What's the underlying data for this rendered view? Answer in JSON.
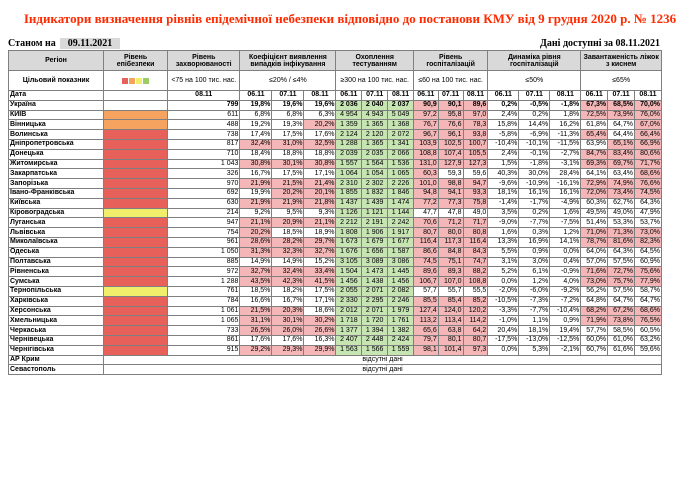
{
  "title": "Індикатори визначення рівнів епідемічної небезпеки відповідно до постанови КМУ від 9 грудня 2020 р. № 1236",
  "status_label": "Станом на",
  "status_date": "09.11.2021",
  "available_label": "Дані доступні за 08.11.2021",
  "headers": {
    "region": "Регіон",
    "level": "Рівень епібезпеки",
    "incidence": "Рівень захворюваності",
    "detection": "Коефіцієнт виявлення випадків інфікування",
    "testing": "Охоплення тестуванням",
    "hosp_level": "Рівень госпіталізацій",
    "hosp_dynamics": "Динаміка рівня госпіталізацій",
    "beds": "Завантаженість ліжок з киснем",
    "target_label": "Цільовий показник",
    "date_label": "Дата",
    "incidence_target": "<75 на 100 тис. нас.",
    "detection_target": "≤20% / ≤4%",
    "testing_target": "≥300 на 100 тис. нас.",
    "hosp_target": "≤60 на 100 тис. нас.",
    "dyn_target": "≤50%",
    "beds_target": "≤65%"
  },
  "dates": [
    "06.11",
    "07.11",
    "08.11"
  ],
  "incidence_date": "08.11",
  "level_colors": {
    "red": "#e8605a",
    "orange": "#f5a35f",
    "yellow": "#f0ee6a",
    "green": "#9ccc65"
  },
  "ukraine": {
    "name": "Україна",
    "inc": "799",
    "det": [
      "19,8%",
      "19,6%",
      "19,6%"
    ],
    "test": [
      "2 036",
      "2 040",
      "2 037"
    ],
    "hosp": [
      "90,9",
      "90,1",
      "89,6"
    ],
    "dyn": [
      "0,2%",
      "-0,5%",
      "-1,8%"
    ],
    "beds": [
      "67,3%",
      "68,5%",
      "70,0%"
    ]
  },
  "rows": [
    {
      "name": "КИЇВ",
      "lvl": "orange",
      "inc": "611",
      "det": [
        "6,8%",
        "6,8%",
        "6,3%"
      ],
      "test": [
        "4 954",
        "4 943",
        "5 049"
      ],
      "hosp": [
        "97,2",
        "95,8",
        "97,0"
      ],
      "dyn": [
        "2,4%",
        "0,2%",
        "1,8%"
      ],
      "beds": [
        "72,5%",
        "73,9%",
        "76,0%"
      ]
    },
    {
      "name": "Вінницька",
      "lvl": "orange",
      "inc": "488",
      "det": [
        "19,2%",
        "19,3%",
        "20,2%"
      ],
      "test": [
        "1 359",
        "1 365",
        "1 368"
      ],
      "hosp": [
        "76,7",
        "76,6",
        "78,3"
      ],
      "dyn": [
        "15,8%",
        "14,4%",
        "16,2%"
      ],
      "beds": [
        "61,8%",
        "64,7%",
        "67,0%"
      ]
    },
    {
      "name": "Волинська",
      "lvl": "red",
      "inc": "738",
      "det": [
        "17,4%",
        "17,5%",
        "17,6%"
      ],
      "test": [
        "2 124",
        "2 120",
        "2 072"
      ],
      "hosp": [
        "96,7",
        "96,1",
        "93,8"
      ],
      "dyn": [
        "-5,8%",
        "-6,9%",
        "-11,3%"
      ],
      "beds": [
        "65,4%",
        "64,4%",
        "66,4%"
      ]
    },
    {
      "name": "Дніпропетровська",
      "lvl": "red",
      "inc": "817",
      "det": [
        "32,4%",
        "31,0%",
        "32,5%"
      ],
      "test": [
        "1 288",
        "1 365",
        "1 341"
      ],
      "hosp": [
        "103,9",
        "102,5",
        "100,7"
      ],
      "dyn": [
        "-10,4%",
        "-10,1%",
        "-11,5%"
      ],
      "beds": [
        "63,9%",
        "65,1%",
        "66,9%"
      ]
    },
    {
      "name": "Донецька",
      "lvl": "red",
      "inc": "710",
      "det": [
        "18,4%",
        "18,8%",
        "18,8%"
      ],
      "test": [
        "2 039",
        "2 035",
        "2 066"
      ],
      "hosp": [
        "108,8",
        "107,4",
        "105,5"
      ],
      "dyn": [
        "2,4%",
        "-0,1%",
        "-2,7%"
      ],
      "beds": [
        "84,7%",
        "83,4%",
        "80,6%"
      ]
    },
    {
      "name": "Житомирська",
      "lvl": "red",
      "inc": "1 043",
      "det": [
        "30,8%",
        "30,1%",
        "30,8%"
      ],
      "test": [
        "1 557",
        "1 564",
        "1 536"
      ],
      "hosp": [
        "131,0",
        "127,9",
        "127,3"
      ],
      "dyn": [
        "1,5%",
        "-1,8%",
        "-3,1%"
      ],
      "beds": [
        "69,3%",
        "69,7%",
        "71,7%"
      ]
    },
    {
      "name": "Закарпатська",
      "lvl": "red",
      "inc": "326",
      "det": [
        "16,7%",
        "17,5%",
        "17,1%"
      ],
      "test": [
        "1 064",
        "1 054",
        "1 065"
      ],
      "hosp": [
        "60,3",
        "59,3",
        "59,6"
      ],
      "dyn": [
        "40,3%",
        "30,0%",
        "28,4%"
      ],
      "beds": [
        "64,1%",
        "63,4%",
        "68,6%"
      ]
    },
    {
      "name": "Запорізька",
      "lvl": "red",
      "inc": "970",
      "det": [
        "21,9%",
        "21,5%",
        "21,4%"
      ],
      "test": [
        "2 310",
        "2 302",
        "2 226"
      ],
      "hosp": [
        "101,0",
        "98,8",
        "94,7"
      ],
      "dyn": [
        "-9,6%",
        "-10,9%",
        "-16,1%"
      ],
      "beds": [
        "72,9%",
        "74,9%",
        "76,6%"
      ]
    },
    {
      "name": "Івано-Франківська",
      "lvl": "red",
      "inc": "692",
      "det": [
        "19,9%",
        "20,2%",
        "20,1%"
      ],
      "test": [
        "1 855",
        "1 832",
        "1 846"
      ],
      "hosp": [
        "94,8",
        "94,1",
        "93,3"
      ],
      "dyn": [
        "18,1%",
        "16,1%",
        "16,1%"
      ],
      "beds": [
        "72,0%",
        "73,4%",
        "74,5%"
      ]
    },
    {
      "name": "Київська",
      "lvl": "red",
      "inc": "630",
      "det": [
        "21,9%",
        "21,9%",
        "21,8%"
      ],
      "test": [
        "1 437",
        "1 439",
        "1 474"
      ],
      "hosp": [
        "77,2",
        "77,3",
        "75,8"
      ],
      "dyn": [
        "-1,4%",
        "-1,7%",
        "-4,9%"
      ],
      "beds": [
        "60,3%",
        "62,7%",
        "64,3%"
      ]
    },
    {
      "name": "Кіровоградська",
      "lvl": "yellow",
      "inc": "214",
      "det": [
        "9,2%",
        "9,5%",
        "9,3%"
      ],
      "test": [
        "1 126",
        "1 121",
        "1 144"
      ],
      "hosp": [
        "47,7",
        "47,8",
        "49,0"
      ],
      "dyn": [
        "3,5%",
        "0,2%",
        "1,6%"
      ],
      "beds": [
        "49,5%",
        "49,0%",
        "47,9%"
      ]
    },
    {
      "name": "Луганська",
      "lvl": "red",
      "inc": "947",
      "det": [
        "21,1%",
        "20,9%",
        "21,1%"
      ],
      "test": [
        "2 212",
        "2 191",
        "2 242"
      ],
      "hosp": [
        "70,6",
        "71,2",
        "71,7"
      ],
      "dyn": [
        "-9,0%",
        "-7,7%",
        "-7,5%"
      ],
      "beds": [
        "51,4%",
        "53,3%",
        "53,7%"
      ]
    },
    {
      "name": "Львівська",
      "lvl": "red",
      "inc": "754",
      "det": [
        "20,2%",
        "18,5%",
        "18,9%"
      ],
      "test": [
        "1 808",
        "1 906",
        "1 917"
      ],
      "hosp": [
        "80,7",
        "80,0",
        "80,8"
      ],
      "dyn": [
        "1,6%",
        "0,3%",
        "1,2%"
      ],
      "beds": [
        "71,0%",
        "71,3%",
        "73,0%"
      ]
    },
    {
      "name": "Миколаївська",
      "lvl": "red",
      "inc": "961",
      "det": [
        "28,6%",
        "28,2%",
        "29,7%"
      ],
      "test": [
        "1 673",
        "1 679",
        "1 677"
      ],
      "hosp": [
        "116,4",
        "117,3",
        "116,4"
      ],
      "dyn": [
        "13,3%",
        "16,9%",
        "14,1%"
      ],
      "beds": [
        "78,7%",
        "81,6%",
        "82,3%"
      ]
    },
    {
      "name": "Одеська",
      "lvl": "red",
      "inc": "1 050",
      "det": [
        "31,3%",
        "32,3%",
        "32,7%"
      ],
      "test": [
        "1 676",
        "1 656",
        "1 587"
      ],
      "hosp": [
        "86,6",
        "84,8",
        "84,3"
      ],
      "dyn": [
        "5,5%",
        "0,9%",
        "0,0%"
      ],
      "beds": [
        "64,0%",
        "64,3%",
        "64,5%"
      ]
    },
    {
      "name": "Полтавська",
      "lvl": "red",
      "inc": "885",
      "det": [
        "14,9%",
        "14,9%",
        "15,2%"
      ],
      "test": [
        "3 105",
        "3 089",
        "3 086"
      ],
      "hosp": [
        "74,5",
        "75,1",
        "74,7"
      ],
      "dyn": [
        "3,1%",
        "3,0%",
        "0,4%"
      ],
      "beds": [
        "57,0%",
        "57,5%",
        "60,9%"
      ]
    },
    {
      "name": "Рівненська",
      "lvl": "red",
      "inc": "972",
      "det": [
        "32,7%",
        "32,4%",
        "33,4%"
      ],
      "test": [
        "1 504",
        "1 473",
        "1 445"
      ],
      "hosp": [
        "89,6",
        "89,3",
        "88,2"
      ],
      "dyn": [
        "5,2%",
        "6,1%",
        "-0,9%"
      ],
      "beds": [
        "71,6%",
        "72,7%",
        "75,6%"
      ]
    },
    {
      "name": "Сумська",
      "lvl": "red",
      "inc": "1 288",
      "det": [
        "43,5%",
        "42,3%",
        "41,5%"
      ],
      "test": [
        "1 456",
        "1 438",
        "1 456"
      ],
      "hosp": [
        "106,7",
        "107,0",
        "108,8"
      ],
      "dyn": [
        "0,0%",
        "1,2%",
        "4,0%"
      ],
      "beds": [
        "73,0%",
        "75,7%",
        "77,9%"
      ]
    },
    {
      "name": "Тернопільська",
      "lvl": "yellow",
      "inc": "761",
      "det": [
        "18,5%",
        "18,2%",
        "17,5%"
      ],
      "test": [
        "2 055",
        "2 071",
        "2 082"
      ],
      "hosp": [
        "57,7",
        "55,7",
        "55,5"
      ],
      "dyn": [
        "-2,0%",
        "-6,0%",
        "-9,2%"
      ],
      "beds": [
        "56,2%",
        "57,5%",
        "58,7%"
      ]
    },
    {
      "name": "Харківська",
      "lvl": "red",
      "inc": "784",
      "det": [
        "16,6%",
        "16,7%",
        "17,1%"
      ],
      "test": [
        "2 330",
        "2 295",
        "2 246"
      ],
      "hosp": [
        "85,5",
        "85,4",
        "85,2"
      ],
      "dyn": [
        "-10,5%",
        "-7,3%",
        "-7,2%"
      ],
      "beds": [
        "64,8%",
        "64,7%",
        "64,7%"
      ]
    },
    {
      "name": "Херсонська",
      "lvl": "red",
      "inc": "1 061",
      "det": [
        "21,5%",
        "20,3%",
        "18,6%"
      ],
      "test": [
        "2 012",
        "2 071",
        "1 979"
      ],
      "hosp": [
        "127,4",
        "124,0",
        "120,2"
      ],
      "dyn": [
        "-3,3%",
        "-7,7%",
        "-10,4%"
      ],
      "beds": [
        "68,2%",
        "67,2%",
        "68,6%"
      ]
    },
    {
      "name": "Хмельницька",
      "lvl": "red",
      "inc": "1 065",
      "det": [
        "31,1%",
        "30,1%",
        "30,2%"
      ],
      "test": [
        "1 718",
        "1 720",
        "1 761"
      ],
      "hosp": [
        "113,2",
        "113,4",
        "114,2"
      ],
      "dyn": [
        "-1,0%",
        "1,1%",
        "0,9%"
      ],
      "beds": [
        "71,9%",
        "73,8%",
        "76,5%"
      ]
    },
    {
      "name": "Черкаська",
      "lvl": "red",
      "inc": "733",
      "det": [
        "26,5%",
        "26,0%",
        "26,6%"
      ],
      "test": [
        "1 377",
        "1 394",
        "1 382"
      ],
      "hosp": [
        "65,6",
        "63,8",
        "64,2"
      ],
      "dyn": [
        "20,4%",
        "18,1%",
        "19,4%"
      ],
      "beds": [
        "57,7%",
        "58,5%",
        "60,5%"
      ]
    },
    {
      "name": "Чернівецька",
      "lvl": "red",
      "inc": "861",
      "det": [
        "17,6%",
        "17,6%",
        "16,3%"
      ],
      "test": [
        "2 407",
        "2 448",
        "2 424"
      ],
      "hosp": [
        "79,7",
        "80,1",
        "80,7"
      ],
      "dyn": [
        "-17,5%",
        "-13,0%",
        "-12,5%"
      ],
      "beds": [
        "60,0%",
        "61,0%",
        "63,2%"
      ]
    },
    {
      "name": "Чернігівська",
      "lvl": "red",
      "inc": "915",
      "det": [
        "29,2%",
        "29,3%",
        "29,9%"
      ],
      "test": [
        "1 563",
        "1 566",
        "1 559"
      ],
      "hosp": [
        "98,1",
        "101,4",
        "97,3"
      ],
      "dyn": [
        "0,0%",
        "5,3%",
        "-2,1%"
      ],
      "beds": [
        "60,7%",
        "61,6%",
        "59,6%"
      ]
    }
  ],
  "missing": [
    {
      "name": "АР Крим",
      "text": "відсутні дані"
    },
    {
      "name": "Севастополь",
      "text": "відсутні дані"
    }
  ]
}
